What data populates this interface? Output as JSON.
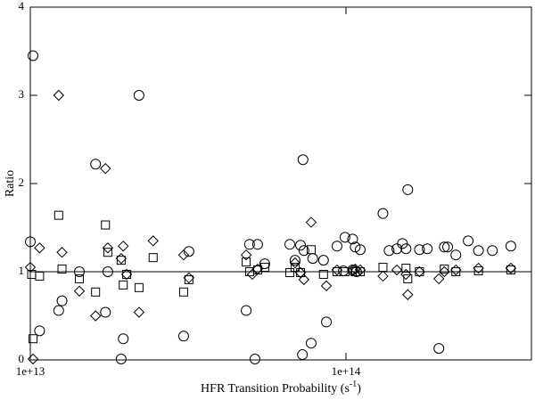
{
  "chart_data": {
    "type": "scatter",
    "x_label": {
      "text": "HFR Transition Probability (s",
      "sup": "-1",
      "tail": ")"
    },
    "y_label": "Ratio",
    "xscale": "log",
    "xlim": [
      10000000000000.0,
      387000000000000.0
    ],
    "ylim": [
      0,
      4
    ],
    "xticks": [
      {
        "value": 10000000000000.0,
        "label": "1e+13"
      },
      {
        "value": 100000000000000.0,
        "label": "1e+14"
      }
    ],
    "yticks": [
      0,
      1,
      2,
      3,
      4
    ],
    "hline": 1,
    "series": [
      {
        "marker": "circle",
        "color": "#000000",
        "x": [
          10000000000000.0,
          10200000000000.0,
          10700000000000.0,
          12300000000000.0,
          12600000000000.0,
          14300000000000.0,
          16100000000000.0,
          17300000000000.0,
          17600000000000.0,
          19400000000000.0,
          19700000000000.0,
          22100000000000.0,
          30600000000000.0,
          31800000000000.0,
          48300000000000.0,
          49500000000000.0,
          51500000000000.0,
          52500000000000.0,
          55300000000000.0,
          66400000000000.0,
          69000000000000.0,
          71800000000000.0,
          72800000000000.0,
          73100000000000.0,
          73600000000000.0,
          77600000000000.0,
          78500000000000.0,
          84900000000000.0,
          86700000000000.0,
          93700000000000.0,
          98200000000000.0,
          99300000000000.0,
          105000000000000.0,
          105000000000000.0,
          107000000000000.0,
          108000000000000.0,
          111000000000000.0,
          131000000000000.0,
          137000000000000.0,
          145000000000000.0,
          151000000000000.0,
          155000000000000.0,
          157000000000000.0,
          171000000000000.0,
          181000000000000.0,
          197000000000000.0,
          205000000000000.0,
          210000000000000.0,
          223000000000000.0,
          244000000000000.0,
          263000000000000.0,
          291000000000000.0,
          333000000000000.0
        ],
        "values": [
          1.34,
          3.45,
          0.33,
          0.56,
          0.67,
          1.0,
          2.22,
          0.54,
          1.0,
          0.01,
          0.24,
          3.0,
          0.27,
          1.23,
          0.56,
          1.31,
          0.01,
          1.31,
          1.09,
          1.31,
          1.13,
          1.3,
          0.06,
          2.27,
          1.24,
          0.19,
          1.15,
          1.13,
          0.43,
          1.29,
          1.01,
          1.39,
          1.37,
          1.02,
          1.28,
          1.0,
          1.25,
          1.66,
          1.24,
          1.26,
          1.32,
          1.26,
          1.93,
          1.25,
          1.26,
          0.13,
          1.28,
          1.28,
          1.19,
          1.35,
          1.24,
          1.24,
          1.29
        ]
      },
      {
        "marker": "diamond",
        "color": "#000000",
        "x": [
          10000000000000.0,
          10200000000000.0,
          10700000000000.0,
          12300000000000.0,
          12600000000000.0,
          14300000000000.0,
          16100000000000.0,
          17300000000000.0,
          17600000000000.0,
          19400000000000.0,
          19700000000000.0,
          20200000000000.0,
          22100000000000.0,
          24500000000000.0,
          30600000000000.0,
          31800000000000.0,
          48300000000000.0,
          50500000000000.0,
          52500000000000.0,
          69000000000000.0,
          71800000000000.0,
          73600000000000.0,
          77600000000000.0,
          86700000000000.0,
          93700000000000.0,
          105000000000000.0,
          107000000000000.0,
          111000000000000.0,
          131000000000000.0,
          145000000000000.0,
          155000000000000.0,
          157000000000000.0,
          171000000000000.0,
          197000000000000.0,
          205000000000000.0,
          223000000000000.0,
          263000000000000.0,
          333000000000000.0
        ],
        "values": [
          1.05,
          0.01,
          1.27,
          3.0,
          1.22,
          0.78,
          0.5,
          2.17,
          1.27,
          1.15,
          1.29,
          0.97,
          0.54,
          1.35,
          1.19,
          0.93,
          1.19,
          0.97,
          1.03,
          1.1,
          0.99,
          0.91,
          1.56,
          0.84,
          1.02,
          1.02,
          1.03,
          1.02,
          0.95,
          1.02,
          0.97,
          0.74,
          1.0,
          0.92,
          1.0,
          1.02,
          1.04,
          1.04
        ]
      },
      {
        "marker": "square",
        "color": "#000000",
        "x": [
          10100000000000.0,
          10200000000000.0,
          10700000000000.0,
          12300000000000.0,
          12600000000000.0,
          14300000000000.0,
          16100000000000.0,
          17300000000000.0,
          17600000000000.0,
          19400000000000.0,
          19700000000000.0,
          20200000000000.0,
          22100000000000.0,
          24500000000000.0,
          30600000000000.0,
          31800000000000.0,
          48300000000000.0,
          49500000000000.0,
          52500000000000.0,
          55300000000000.0,
          66400000000000.0,
          69000000000000.0,
          71800000000000.0,
          77600000000000.0,
          84900000000000.0,
          93700000000000.0,
          99300000000000.0,
          107000000000000.0,
          111000000000000.0,
          131000000000000.0,
          155000000000000.0,
          157000000000000.0,
          171000000000000.0,
          205000000000000.0,
          223000000000000.0,
          263000000000000.0,
          333000000000000.0
        ],
        "values": [
          0.97,
          0.24,
          0.95,
          1.64,
          1.03,
          0.92,
          0.77,
          1.53,
          1.22,
          1.13,
          0.85,
          0.97,
          0.82,
          1.16,
          0.77,
          0.91,
          1.11,
          1.0,
          1.02,
          1.05,
          0.99,
          1.05,
          0.99,
          1.25,
          0.97,
          1.0,
          1.0,
          1.0,
          1.0,
          1.05,
          1.04,
          0.92,
          1.0,
          1.03,
          1.0,
          1.01,
          1.02
        ]
      }
    ]
  }
}
